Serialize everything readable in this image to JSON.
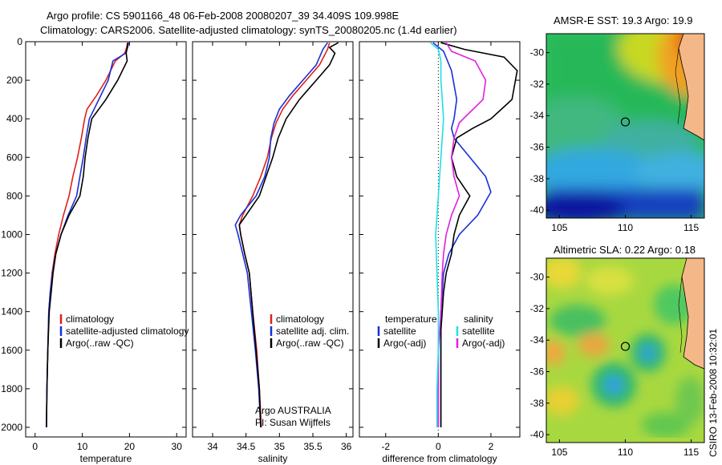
{
  "title_line1": "Argo profile: CS 5901166_48 06-Feb-2008 20080207_39 34.409S 109.998E",
  "title_line2": "Climatology: CARS2006. Satellite-adjusted climatology: synTS_20080205.nc (1.4d earlier)",
  "side_stamp": "CSIRO 13-Feb-2008 10:32:01",
  "colors": {
    "red": "#e0201a",
    "blue": "#1830d8",
    "black": "#000000",
    "magenta": "#e020e0",
    "cyan": "#20e0e8",
    "land": "#f4b888"
  },
  "chart_data": [
    {
      "type": "line",
      "id": "temperature",
      "xlabel": "temperature",
      "ylabel": "",
      "xlim": [
        -2,
        32
      ],
      "ylim": [
        2050,
        0
      ],
      "xticks": [
        0,
        10,
        20,
        30
      ],
      "yticks": [
        0,
        200,
        400,
        600,
        800,
        1000,
        1200,
        1400,
        1600,
        1800,
        2000
      ],
      "legend": {
        "position": "lower-right",
        "entries": [
          {
            "text": "climatology",
            "color": "#e0201a"
          },
          {
            "text": "satellite-adjusted climatology",
            "color": "#1830d8"
          },
          {
            "text": "Argo(..raw -QC)",
            "color": "#000000"
          }
        ]
      },
      "series": [
        {
          "color": "#e0201a",
          "points": [
            [
              19.6,
              5
            ],
            [
              19.4,
              30
            ],
            [
              19,
              60
            ],
            [
              17,
              100
            ],
            [
              15,
              200
            ],
            [
              13,
              280
            ],
            [
              11,
              350
            ],
            [
              10.5,
              400
            ],
            [
              9.8,
              500
            ],
            [
              9,
              600
            ],
            [
              8,
              700
            ],
            [
              7.2,
              800
            ],
            [
              6,
              900
            ],
            [
              5,
              1000
            ],
            [
              4.2,
              1100
            ],
            [
              3.6,
              1200
            ],
            [
              3.2,
              1300
            ],
            [
              2.9,
              1400
            ],
            [
              2.7,
              1600
            ],
            [
              2.5,
              1800
            ],
            [
              2.4,
              2000
            ]
          ]
        },
        {
          "color": "#1830d8",
          "points": [
            [
              19.8,
              5
            ],
            [
              19.6,
              30
            ],
            [
              19.2,
              60
            ],
            [
              16.5,
              100
            ],
            [
              15.5,
              200
            ],
            [
              13.5,
              300
            ],
            [
              11.5,
              400
            ],
            [
              10.8,
              500
            ],
            [
              10.2,
              600
            ],
            [
              9.5,
              700
            ],
            [
              8.8,
              800
            ],
            [
              7,
              900
            ],
            [
              5.5,
              1000
            ],
            [
              4.4,
              1100
            ],
            [
              3.7,
              1200
            ],
            [
              3.2,
              1300
            ],
            [
              2.9,
              1400
            ],
            [
              2.7,
              1600
            ],
            [
              2.5,
              1800
            ],
            [
              2.4,
              2000
            ]
          ]
        },
        {
          "color": "#000000",
          "points": [
            [
              19.7,
              5
            ],
            [
              19.5,
              30
            ],
            [
              19.3,
              60
            ],
            [
              19.5,
              100
            ],
            [
              17.5,
              200
            ],
            [
              15,
              300
            ],
            [
              12,
              400
            ],
            [
              11.2,
              500
            ],
            [
              10.6,
              600
            ],
            [
              10.2,
              700
            ],
            [
              9.5,
              800
            ],
            [
              7.2,
              900
            ],
            [
              5.5,
              1000
            ],
            [
              4.4,
              1100
            ],
            [
              3.8,
              1200
            ],
            [
              3.4,
              1300
            ],
            [
              3,
              1400
            ],
            [
              2.7,
              1600
            ],
            [
              2.5,
              1800
            ],
            [
              2.4,
              2000
            ]
          ]
        }
      ]
    },
    {
      "type": "line",
      "id": "salinity",
      "xlabel": "salinity",
      "ylabel": "",
      "xlim": [
        33.7,
        36.1
      ],
      "ylim": [
        2050,
        0
      ],
      "xticks": [
        34,
        34.5,
        35,
        35.5,
        36
      ],
      "yticks": [
        0,
        200,
        400,
        600,
        800,
        1000,
        1200,
        1400,
        1600,
        1800,
        2000
      ],
      "legend": {
        "position": "lower-right",
        "entries": [
          {
            "text": "climatology",
            "color": "#e0201a"
          },
          {
            "text": "satellite adj. clim.",
            "color": "#1830d8"
          },
          {
            "text": "Argo(..raw -QC)",
            "color": "#000000"
          }
        ]
      },
      "annotation": [
        "Argo AUSTRALIA",
        "PI: Susan Wijffels"
      ],
      "series": [
        {
          "color": "#e0201a",
          "points": [
            [
              35.75,
              5
            ],
            [
              35.72,
              40
            ],
            [
              35.6,
              120
            ],
            [
              35.4,
              200
            ],
            [
              35.2,
              280
            ],
            [
              35.05,
              350
            ],
            [
              34.95,
              420
            ],
            [
              34.88,
              500
            ],
            [
              34.82,
              600
            ],
            [
              34.72,
              700
            ],
            [
              34.6,
              800
            ],
            [
              34.45,
              900
            ],
            [
              34.4,
              950
            ],
            [
              34.42,
              1000
            ],
            [
              34.48,
              1100
            ],
            [
              34.55,
              1200
            ],
            [
              34.6,
              1400
            ],
            [
              34.66,
              1600
            ],
            [
              34.7,
              1800
            ],
            [
              34.73,
              2000
            ]
          ]
        },
        {
          "color": "#1830d8",
          "points": [
            [
              35.72,
              5
            ],
            [
              35.65,
              40
            ],
            [
              35.55,
              120
            ],
            [
              35.35,
              200
            ],
            [
              35.15,
              280
            ],
            [
              35.0,
              350
            ],
            [
              34.92,
              420
            ],
            [
              34.87,
              500
            ],
            [
              34.85,
              600
            ],
            [
              34.78,
              700
            ],
            [
              34.65,
              800
            ],
            [
              34.42,
              900
            ],
            [
              34.34,
              950
            ],
            [
              34.38,
              1000
            ],
            [
              34.45,
              1100
            ],
            [
              34.52,
              1200
            ],
            [
              34.58,
              1400
            ],
            [
              34.64,
              1600
            ],
            [
              34.69,
              1800
            ],
            [
              34.72,
              2000
            ]
          ]
        },
        {
          "color": "#000000",
          "points": [
            [
              35.88,
              5
            ],
            [
              35.75,
              30
            ],
            [
              35.83,
              60
            ],
            [
              35.75,
              120
            ],
            [
              35.55,
              200
            ],
            [
              35.3,
              300
            ],
            [
              35.1,
              400
            ],
            [
              34.98,
              500
            ],
            [
              34.9,
              600
            ],
            [
              34.8,
              700
            ],
            [
              34.7,
              800
            ],
            [
              34.5,
              900
            ],
            [
              34.4,
              950
            ],
            [
              34.42,
              1000
            ],
            [
              34.48,
              1100
            ],
            [
              34.55,
              1200
            ],
            [
              34.6,
              1400
            ],
            [
              34.65,
              1600
            ],
            [
              34.7,
              1800
            ],
            [
              34.72,
              2000
            ]
          ]
        }
      ]
    },
    {
      "type": "line",
      "id": "difference",
      "xlabel": "difference from climatology",
      "ylabel": "",
      "xlim": [
        -3,
        3.1
      ],
      "ylim": [
        2050,
        0
      ],
      "xticks": [
        -2,
        0,
        2
      ],
      "yticks": [
        0,
        200,
        400,
        600,
        800,
        1000,
        1200,
        1400,
        1600,
        1800,
        2000
      ],
      "legend": {
        "position": "lower",
        "entries": [
          {
            "text": "temperature",
            "color": ""
          },
          {
            "text": "satellite",
            "color": "#1830d8"
          },
          {
            "text": "Argo(-adj)",
            "color": "#000000"
          },
          {
            "text": "salinity",
            "color": ""
          },
          {
            "text": "satellite",
            "color": "#20e0e8"
          },
          {
            "text": "Argo(-adj)",
            "color": "#e020e0"
          }
        ]
      },
      "series": [
        {
          "color": "#1830d8",
          "points": [
            [
              -0.2,
              5
            ],
            [
              0.2,
              50
            ],
            [
              0.5,
              150
            ],
            [
              0.7,
              300
            ],
            [
              0.6,
              400
            ],
            [
              0.5,
              450
            ],
            [
              0.6,
              500
            ],
            [
              1.2,
              600
            ],
            [
              1.8,
              700
            ],
            [
              2.0,
              780
            ],
            [
              1.5,
              900
            ],
            [
              0.8,
              1000
            ],
            [
              0.4,
              1100
            ],
            [
              0.2,
              1200
            ],
            [
              0.1,
              1400
            ],
            [
              0.1,
              1600
            ],
            [
              0.1,
              1800
            ],
            [
              0.1,
              2000
            ]
          ]
        },
        {
          "color": "#000000",
          "points": [
            [
              0.1,
              5
            ],
            [
              1.0,
              40
            ],
            [
              2.5,
              80
            ],
            [
              3.0,
              150
            ],
            [
              2.8,
              300
            ],
            [
              2.0,
              400
            ],
            [
              1.3,
              450
            ],
            [
              0.7,
              500
            ],
            [
              0.5,
              600
            ],
            [
              0.7,
              700
            ],
            [
              1.2,
              800
            ],
            [
              0.8,
              900
            ],
            [
              0.6,
              1000
            ],
            [
              0.5,
              1100
            ],
            [
              0.3,
              1200
            ],
            [
              0.2,
              1300
            ],
            [
              0.1,
              1500
            ],
            [
              0.1,
              1800
            ],
            [
              0.1,
              2000
            ]
          ]
        },
        {
          "color": "#e020e0",
          "points": [
            [
              0.3,
              5
            ],
            [
              0.5,
              50
            ],
            [
              1.4,
              100
            ],
            [
              1.8,
              200
            ],
            [
              1.7,
              300
            ],
            [
              0.8,
              420
            ],
            [
              0.6,
              500
            ],
            [
              0.5,
              600
            ],
            [
              0.6,
              700
            ],
            [
              0.8,
              800
            ],
            [
              0.5,
              900
            ],
            [
              0.3,
              1000
            ],
            [
              0.2,
              1100
            ],
            [
              0.15,
              1200
            ],
            [
              0.1,
              1400
            ],
            [
              0.0,
              1600
            ],
            [
              0.0,
              1800
            ],
            [
              0.0,
              2000
            ]
          ]
        },
        {
          "color": "#20e0e8",
          "points": [
            [
              -0.3,
              5
            ],
            [
              0.0,
              40
            ],
            [
              0.1,
              100
            ],
            [
              0.1,
              200
            ],
            [
              0.15,
              300
            ],
            [
              0.2,
              400
            ],
            [
              0.1,
              600
            ],
            [
              0.0,
              800
            ],
            [
              -0.1,
              1000
            ],
            [
              -0.05,
              1200
            ],
            [
              0.0,
              1400
            ],
            [
              0.0,
              1600
            ],
            [
              -0.05,
              1800
            ],
            [
              -0.05,
              2000
            ]
          ]
        }
      ]
    },
    {
      "type": "heatmap",
      "id": "sst_map",
      "title": "AMSR-E SST: 19.3 Argo: 19.9",
      "xlim": [
        104,
        116
      ],
      "ylim": [
        -40.5,
        -28.8
      ],
      "xticks": [
        105,
        110,
        115
      ],
      "yticks": [
        -30,
        -32,
        -34,
        -36,
        -38,
        -40
      ],
      "marker": [
        110.0,
        -34.4
      ]
    },
    {
      "type": "heatmap",
      "id": "sla_map",
      "title": "Altimetric SLA: 0.22 Argo: 0.18",
      "xlim": [
        104,
        116
      ],
      "ylim": [
        -40.5,
        -28.8
      ],
      "xticks": [
        105,
        110,
        115
      ],
      "yticks": [
        -30,
        -32,
        -34,
        -36,
        -38,
        -40
      ],
      "marker": [
        110.0,
        -34.4
      ]
    }
  ]
}
